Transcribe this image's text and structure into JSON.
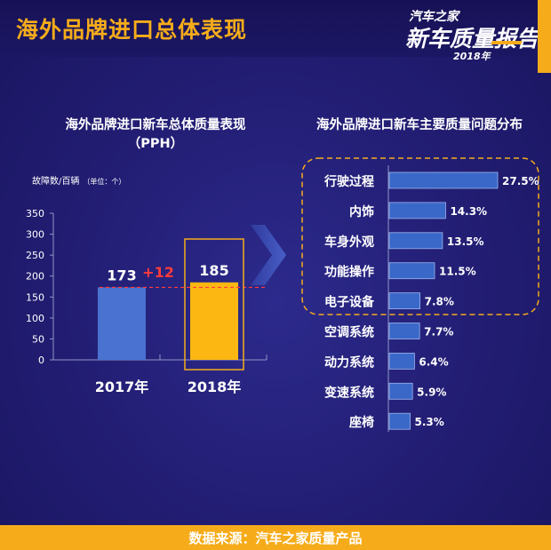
{
  "page": {
    "title": "海外品牌进口总体表现",
    "source": "数据来源：汽车之家质量产品"
  },
  "logo": {
    "line1": "汽车之家",
    "line2": "新车质量报告",
    "line3": "2018年"
  },
  "colors": {
    "accent": "#f6ac1a",
    "bar_2017": "#4a72d0",
    "bar_2018": "#fdb713",
    "hbar": "#3a68c8",
    "hbar_border": "#9cb4ee",
    "delta": "#ff3b3b"
  },
  "chart_data": [
    {
      "type": "bar",
      "title": "海外品牌进口新车总体质量表现",
      "subtitle": "（PPH）",
      "ylabel": "故障数/百辆",
      "ylabel_unit": "（单位：个）",
      "categories": [
        "2017年",
        "2018年"
      ],
      "values": [
        173,
        185
      ],
      "ylim": [
        0,
        350
      ],
      "yticks": [
        0,
        50,
        100,
        150,
        200,
        250,
        300,
        350
      ],
      "delta_label": "+12",
      "grid": false
    },
    {
      "type": "bar",
      "orientation": "horizontal",
      "title": "海外品牌进口新车主要质量问题分布",
      "categories": [
        "行驶过程",
        "内饰",
        "车身外观",
        "功能操作",
        "电子设备",
        "空调系统",
        "动力系统",
        "变速系统",
        "座椅"
      ],
      "values": [
        27.5,
        14.3,
        13.5,
        11.5,
        7.8,
        7.7,
        6.4,
        5.9,
        5.3
      ],
      "value_labels": [
        "27.5%",
        "14.3%",
        "13.5%",
        "11.5%",
        "7.8%",
        "7.7%",
        "6.4%",
        "5.9%",
        "5.3%"
      ],
      "highlighted_top": 5,
      "grid": false
    }
  ]
}
